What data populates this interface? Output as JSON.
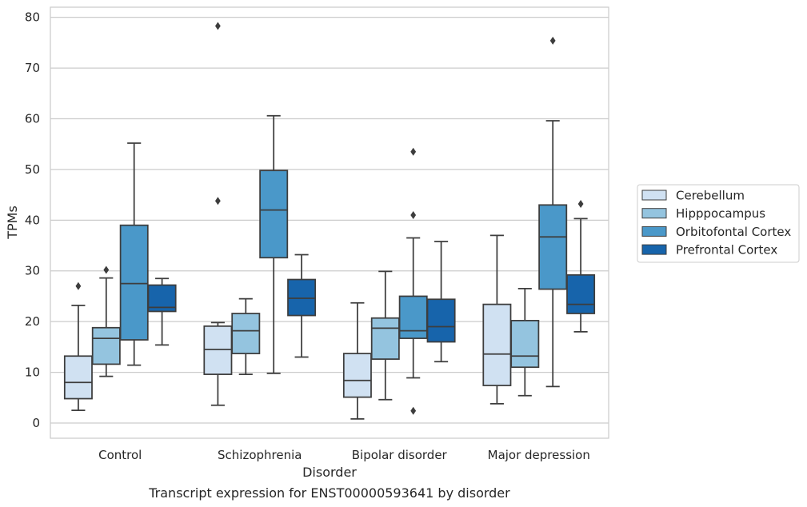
{
  "chart_data": {
    "type": "box",
    "title": "",
    "caption": "Transcript expression for ENST00000593641 by disorder",
    "xlabel": "Disorder",
    "ylabel": "TPMs",
    "ylim": [
      -3,
      82
    ],
    "yticks": [
      0,
      10,
      20,
      30,
      40,
      50,
      60,
      70,
      80
    ],
    "grid": "horizontal",
    "legend_position": "right",
    "categories": [
      "Control",
      "Schizophrenia",
      "Bipolar disorder",
      "Major depression"
    ],
    "series": [
      {
        "name": "Cerebellum",
        "color": "#d0e1f2",
        "boxes": [
          {
            "whislo": 2.5,
            "q1": 4.8,
            "med": 8.0,
            "q3": 13.2,
            "whishi": 23.2,
            "fliers": [
              27.0
            ]
          },
          {
            "whislo": 3.5,
            "q1": 9.6,
            "med": 14.5,
            "q3": 19.1,
            "whishi": 19.8,
            "fliers": [
              43.8,
              78.3
            ]
          },
          {
            "whislo": 0.8,
            "q1": 5.1,
            "med": 8.4,
            "q3": 13.7,
            "whishi": 23.7,
            "fliers": []
          },
          {
            "whislo": 3.8,
            "q1": 7.4,
            "med": 13.6,
            "q3": 23.4,
            "whishi": 37.0,
            "fliers": []
          }
        ]
      },
      {
        "name": "Hipppocampus",
        "color": "#94c4df",
        "boxes": [
          {
            "whislo": 9.2,
            "q1": 11.6,
            "med": 16.7,
            "q3": 18.8,
            "whishi": 28.6,
            "fliers": [
              30.2
            ]
          },
          {
            "whislo": 9.6,
            "q1": 13.7,
            "med": 18.2,
            "q3": 21.6,
            "whishi": 24.5,
            "fliers": []
          },
          {
            "whislo": 4.6,
            "q1": 12.6,
            "med": 18.7,
            "q3": 20.7,
            "whishi": 29.9,
            "fliers": []
          },
          {
            "whislo": 5.4,
            "q1": 11.0,
            "med": 13.2,
            "q3": 20.2,
            "whishi": 26.5,
            "fliers": []
          }
        ]
      },
      {
        "name": "Orbitofontal Cortex",
        "color": "#4a98c9",
        "boxes": [
          {
            "whislo": 11.4,
            "q1": 16.4,
            "med": 27.5,
            "q3": 39.0,
            "whishi": 55.2,
            "fliers": []
          },
          {
            "whislo": 9.8,
            "q1": 32.6,
            "med": 42.0,
            "q3": 49.8,
            "whishi": 60.6,
            "fliers": []
          },
          {
            "whislo": 8.9,
            "q1": 16.7,
            "med": 18.2,
            "q3": 25.0,
            "whishi": 36.5,
            "fliers": [
              2.4,
              41.0,
              53.5
            ]
          },
          {
            "whislo": 7.2,
            "q1": 26.4,
            "med": 36.7,
            "q3": 43.0,
            "whishi": 59.6,
            "fliers": [
              75.4
            ]
          }
        ]
      },
      {
        "name": "Prefrontal Cortex",
        "color": "#1764ab",
        "boxes": [
          {
            "whislo": 15.4,
            "q1": 22.0,
            "med": 22.8,
            "q3": 27.2,
            "whishi": 28.5,
            "fliers": []
          },
          {
            "whislo": 13.0,
            "q1": 21.2,
            "med": 24.6,
            "q3": 28.3,
            "whishi": 33.2,
            "fliers": []
          },
          {
            "whislo": 12.1,
            "q1": 16.0,
            "med": 19.0,
            "q3": 24.4,
            "whishi": 35.8,
            "fliers": []
          },
          {
            "whislo": 18.0,
            "q1": 21.6,
            "med": 23.4,
            "q3": 29.2,
            "whishi": 40.3,
            "fliers": [
              43.2
            ]
          }
        ]
      }
    ]
  }
}
